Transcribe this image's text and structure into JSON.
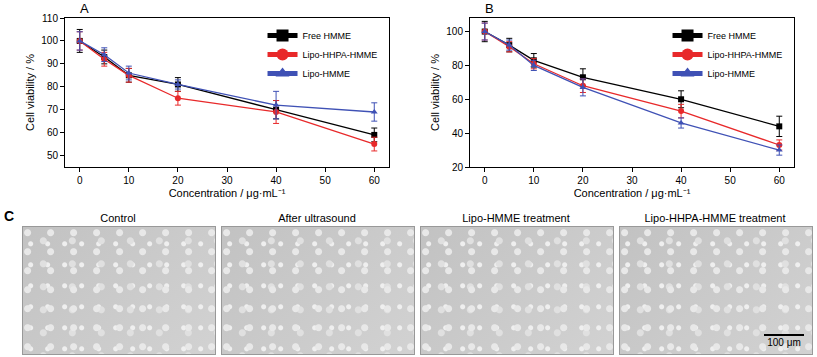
{
  "chart_data": [
    {
      "type": "line",
      "title": "A",
      "x_label": "Concentration / μg·mL⁻¹",
      "y_label": "Cell viability / %",
      "x": [
        0,
        5,
        10,
        20,
        40,
        60
      ],
      "series": [
        {
          "name": "Free HMME",
          "color": "#000000",
          "marker": "square",
          "line_style": "solid",
          "values": [
            100,
            93,
            85,
            81,
            70,
            59
          ],
          "error": [
            5,
            3,
            3,
            3,
            4,
            3
          ]
        },
        {
          "name": "Lipo-HHPA-HMME",
          "color": "#e8292a",
          "marker": "circle",
          "line_style": "solid",
          "values": [
            100,
            92,
            85,
            75,
            69,
            55
          ],
          "error": [
            4,
            3,
            3,
            3,
            5,
            3
          ]
        },
        {
          "name": "Lipo-HMME",
          "color": "#3f51b5",
          "marker": "triangle-up",
          "line_style": "solid",
          "values": [
            100,
            94,
            86,
            81,
            72,
            69
          ],
          "error": [
            4,
            3,
            3,
            2,
            6,
            4
          ]
        }
      ],
      "xlim": [
        -3,
        63
      ],
      "xticks": [
        0,
        10,
        20,
        30,
        40,
        50,
        60
      ],
      "ylim": [
        45,
        110
      ],
      "yticks": [
        50,
        60,
        70,
        80,
        90,
        100,
        110
      ],
      "grid": false,
      "legend": "top right"
    },
    {
      "type": "line",
      "title": "B",
      "x_label": "Concentration / μg·mL⁻¹",
      "y_label": "Cell viability / %",
      "x": [
        0,
        5,
        10,
        20,
        40,
        60
      ],
      "series": [
        {
          "name": "Free HMME",
          "color": "#000000",
          "marker": "square",
          "line_style": "solid",
          "values": [
            100,
            92,
            83,
            73,
            60,
            44
          ],
          "error": [
            6,
            4,
            4,
            5,
            5,
            6
          ]
        },
        {
          "name": "Lipo-HHPA-HMME",
          "color": "#e8292a",
          "marker": "circle",
          "line_style": "solid",
          "values": [
            100,
            91,
            81,
            68,
            53,
            33
          ],
          "error": [
            5,
            3,
            3,
            4,
            4,
            3
          ]
        },
        {
          "name": "Lipo-HMME",
          "color": "#3f51b5",
          "marker": "triangle-up",
          "line_style": "solid",
          "values": [
            100,
            92,
            80,
            67,
            46,
            30
          ],
          "error": [
            5,
            3,
            3,
            5,
            3,
            3
          ]
        }
      ],
      "xlim": [
        -3,
        63
      ],
      "xticks": [
        0,
        10,
        20,
        30,
        40,
        50,
        60
      ],
      "ylim": [
        20,
        108
      ],
      "yticks": [
        20,
        40,
        60,
        80,
        100
      ],
      "grid": false,
      "legend": "top right"
    }
  ],
  "panel_c": {
    "label": "C",
    "images": [
      "Control",
      "After ultrasound",
      "Lipo-HMME treatment",
      "Lipo-HHPA-HMME treatment"
    ],
    "scale_bar": "100 μm"
  }
}
